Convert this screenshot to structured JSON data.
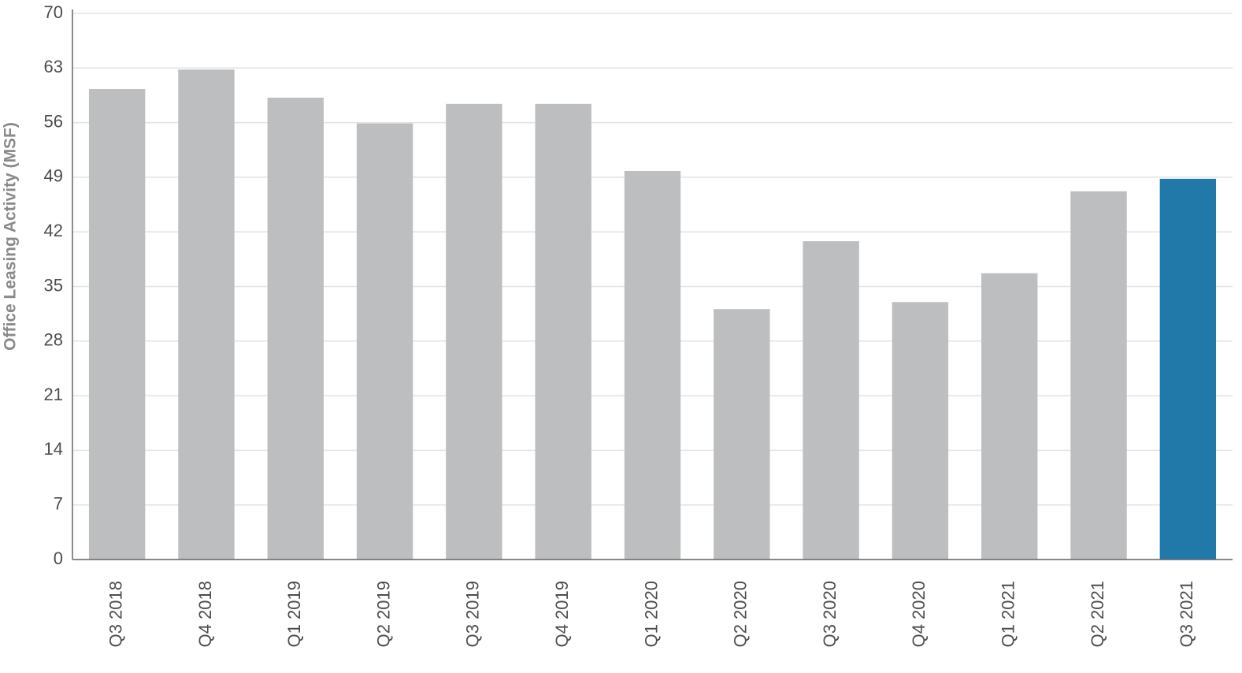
{
  "chart_data": {
    "type": "bar",
    "y_label": "Office Leasing Activity (MSF)",
    "categories": [
      "Q3 2018",
      "Q4 2018",
      "Q1 2019",
      "Q2 2019",
      "Q3 2019",
      "Q4 2019",
      "Q1 2020",
      "Q2 2020",
      "Q3 2020",
      "Q4 2020",
      "Q1 2021",
      "Q2 2021",
      "Q3 2021"
    ],
    "values": [
      60.3,
      62.8,
      59.2,
      55.9,
      58.4,
      58.4,
      49.8,
      32.1,
      40.8,
      33.0,
      36.7,
      47.2,
      48.8
    ],
    "colors": [
      "#bdbec0",
      "#bdbec0",
      "#bdbec0",
      "#bdbec0",
      "#bdbec0",
      "#bdbec0",
      "#bdbec0",
      "#bdbec0",
      "#bdbec0",
      "#bdbec0",
      "#bdbec0",
      "#bdbec0",
      "#2079a9"
    ],
    "ylim": [
      0,
      70
    ],
    "yticks": [
      0,
      7,
      14,
      21,
      28,
      35,
      42,
      49,
      56,
      63,
      70
    ],
    "grid": true
  }
}
